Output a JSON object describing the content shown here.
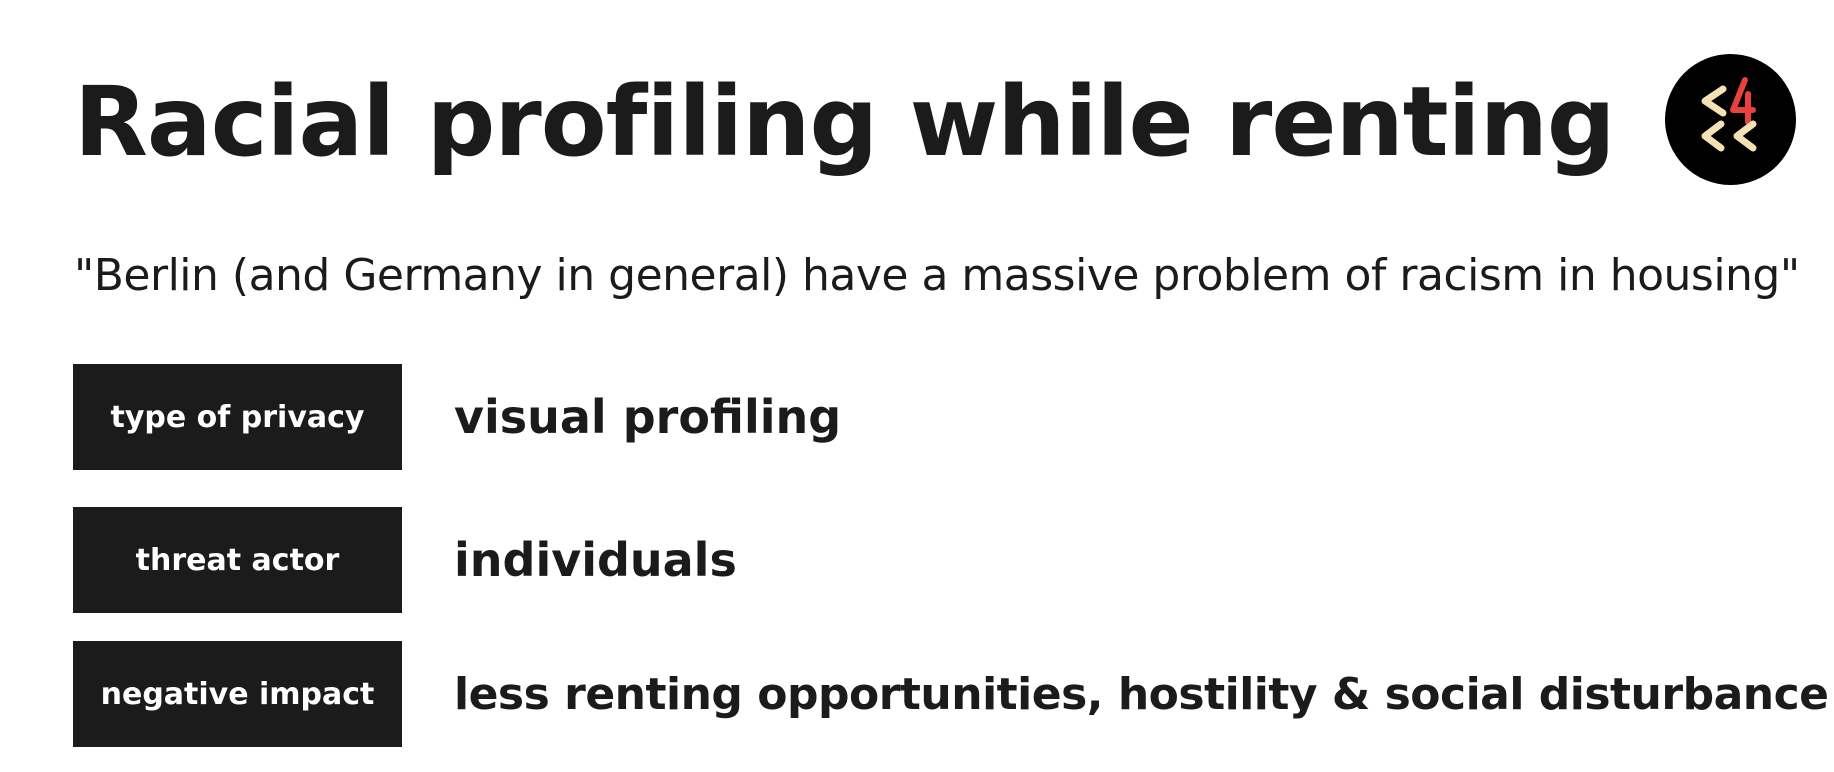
{
  "title": "Racial profiling while renting",
  "quote": "\"Berlin (and Germany in general) have a massive problem of racism in housing\"",
  "logo": {
    "icon": "c4cc-logo-icon",
    "background_color": "#000000",
    "chevron_color": "#f6e0b5",
    "digit_color": "#e8423f"
  },
  "rows": [
    {
      "tag": "type of privacy",
      "value": "visual profiling"
    },
    {
      "tag": "threat actor",
      "value": "individuals"
    },
    {
      "tag": "negative impact",
      "value": "less renting opportunities, hostility & social disturbance"
    }
  ],
  "colors": {
    "text": "#1b1b1b",
    "tag_background": "#1b1b1b",
    "tag_text": "#ffffff",
    "background": "#ffffff"
  }
}
